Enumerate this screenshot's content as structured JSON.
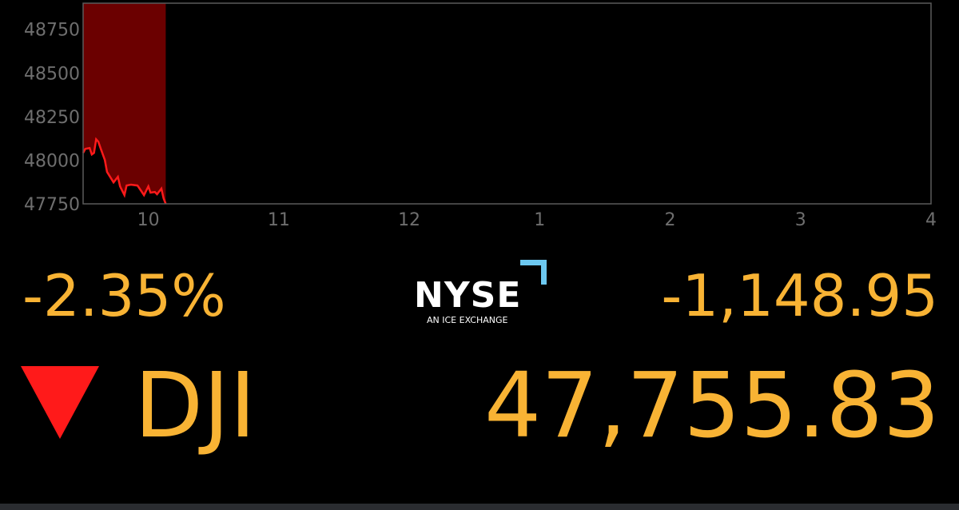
{
  "chart_data": {
    "type": "area",
    "xlim": [
      "09:30",
      "16:00"
    ],
    "ylim": [
      47750,
      48900
    ],
    "y_ticks": [
      47750,
      48000,
      48250,
      48500,
      48750
    ],
    "y_tick_labels": [
      "47750",
      "48000",
      "48250",
      "48500",
      "48750"
    ],
    "x_ticks": [
      "10:00",
      "11:00",
      "12:00",
      "13:00",
      "14:00",
      "15:00",
      "16:00"
    ],
    "x_tick_labels": [
      "10",
      "11",
      "12",
      "1",
      "2",
      "3",
      "4"
    ],
    "grid": false,
    "line_color": "#ff1a1a",
    "fill_color": "#6b0000",
    "series": [
      {
        "x": [
          "09:30",
          "09:31",
          "09:33",
          "09:34",
          "09:35",
          "09:36",
          "09:37",
          "09:38",
          "09:40",
          "09:41",
          "09:44",
          "09:46",
          "09:47",
          "09:49",
          "09:50",
          "09:52",
          "09:55",
          "09:56",
          "09:58",
          "10:00",
          "10:01",
          "10:03",
          "10:04",
          "10:06",
          "10:07",
          "10:08"
        ],
        "values": [
          48042,
          48065,
          48070,
          48033,
          48042,
          48120,
          48106,
          48070,
          48001,
          47933,
          47873,
          47905,
          47850,
          47800,
          47855,
          47860,
          47855,
          47837,
          47800,
          47850,
          47814,
          47818,
          47805,
          47837,
          47782,
          47750
        ]
      }
    ]
  },
  "ticker": {
    "percent_change": "-2.35%",
    "point_change": "-1,148.95",
    "symbol": "DJI",
    "price": "47,755.83",
    "direction": "down",
    "down_color": "#ff1a1a",
    "text_color": "#f8b334"
  },
  "logo": {
    "name": "NYSE",
    "tagline": "AN ICE EXCHANGE",
    "accent": "#6cc8f0"
  }
}
